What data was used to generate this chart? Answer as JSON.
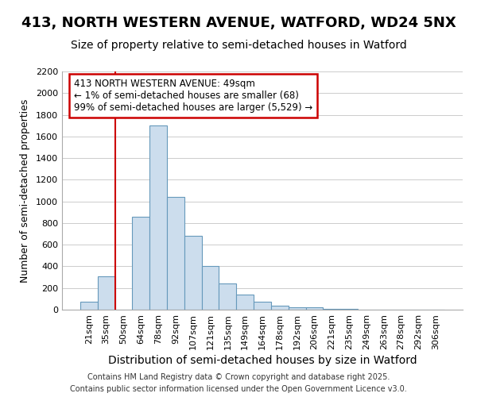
{
  "title": "413, NORTH WESTERN AVENUE, WATFORD, WD24 5NX",
  "subtitle": "Size of property relative to semi-detached houses in Watford",
  "xlabel": "Distribution of semi-detached houses by size in Watford",
  "ylabel": "Number of semi-detached properties",
  "footnote1": "Contains HM Land Registry data © Crown copyright and database right 2025.",
  "footnote2": "Contains public sector information licensed under the Open Government Licence v3.0.",
  "annotation_line1": "413 NORTH WESTERN AVENUE: 49sqm",
  "annotation_line2": "← 1% of semi-detached houses are smaller (68)",
  "annotation_line3": "99% of semi-detached houses are larger (5,529) →",
  "bar_color": "#ccdded",
  "bar_edge_color": "#6699bb",
  "annotation_box_color": "#ffffff",
  "annotation_box_edge": "#cc0000",
  "property_line_color": "#cc0000",
  "categories": [
    "21sqm",
    "35sqm",
    "50sqm",
    "64sqm",
    "78sqm",
    "92sqm",
    "107sqm",
    "121sqm",
    "135sqm",
    "149sqm",
    "164sqm",
    "178sqm",
    "192sqm",
    "206sqm",
    "221sqm",
    "235sqm",
    "249sqm",
    "263sqm",
    "278sqm",
    "292sqm",
    "306sqm"
  ],
  "values": [
    70,
    310,
    0,
    860,
    1700,
    1040,
    680,
    400,
    245,
    140,
    75,
    35,
    25,
    20,
    10,
    5,
    3,
    1,
    0,
    0,
    0
  ],
  "property_bin_index": 2,
  "ylim": [
    0,
    2200
  ],
  "yticks": [
    0,
    200,
    400,
    600,
    800,
    1000,
    1200,
    1400,
    1600,
    1800,
    2000,
    2200
  ],
  "background_color": "#ffffff",
  "grid_color": "#cccccc",
  "title_fontsize": 13,
  "subtitle_fontsize": 10,
  "xlabel_fontsize": 10,
  "ylabel_fontsize": 9,
  "xtick_fontsize": 8,
  "ytick_fontsize": 8,
  "footnote_fontsize": 7
}
